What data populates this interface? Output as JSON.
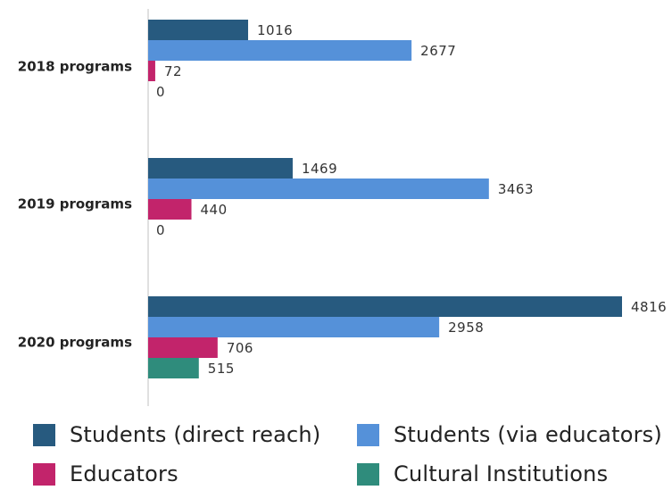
{
  "chart_data": {
    "type": "bar",
    "orientation": "horizontal",
    "categories": [
      "2018 programs",
      "2019 programs",
      "2020 programs"
    ],
    "series": [
      {
        "name": "Students (direct reach)",
        "color": "#275a7f",
        "values": [
          1016,
          1469,
          4816
        ]
      },
      {
        "name": "Students (via educators)",
        "color": "#5591d9",
        "values": [
          2677,
          3463,
          2958
        ]
      },
      {
        "name": "Educators",
        "color": "#c2246b",
        "values": [
          72,
          440,
          706
        ]
      },
      {
        "name": "Cultural Institutions",
        "color": "#2f8c7c",
        "values": [
          0,
          0,
          515
        ]
      }
    ],
    "xlim": [
      0,
      4900
    ],
    "grid": false,
    "legend_position": "bottom",
    "data_labels": true
  }
}
